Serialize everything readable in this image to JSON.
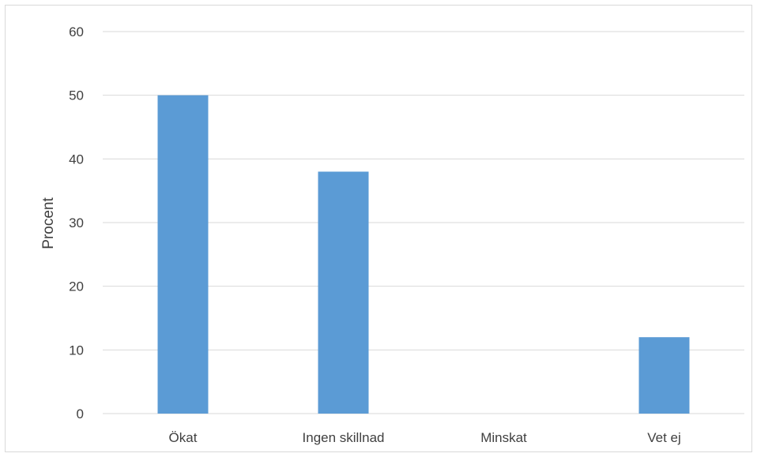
{
  "chart_data": {
    "type": "bar",
    "categories": [
      "Ökat",
      "Ingen skillnad",
      "Minskat",
      "Vet ej"
    ],
    "values": [
      50,
      38,
      0,
      12
    ],
    "title": "",
    "xlabel": "",
    "ylabel": "Procent",
    "ylim": [
      0,
      60
    ],
    "yticks": [
      0,
      10,
      20,
      30,
      40,
      50,
      60
    ],
    "grid": true,
    "legend": "none",
    "bar_color": "#5b9bd5",
    "grid_color": "#d9d9d9"
  }
}
